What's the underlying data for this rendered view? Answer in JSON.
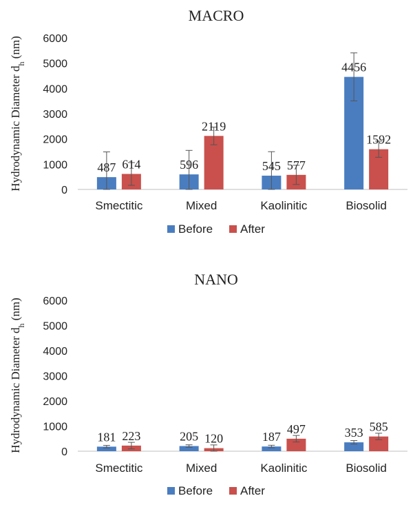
{
  "chart_data": [
    {
      "type": "bar",
      "title": "MACRO",
      "ylabel_main": "Hydrodynamic Diameter d",
      "ylabel_sub": "h",
      "ylabel_unit": " (nm)",
      "ylim": [
        0,
        6000
      ],
      "yticks": [
        "0",
        "1000",
        "2000",
        "3000",
        "4000",
        "5000",
        "6000"
      ],
      "categories": [
        "Smectitic",
        "Mixed",
        "Kaolinitic",
        "Biosolid"
      ],
      "series": [
        {
          "name": "Before",
          "color": "#4a7dc0",
          "values": [
            487,
            596,
            545,
            4456
          ],
          "labels": [
            "487",
            "596",
            "545",
            "4456"
          ],
          "errors": [
            1000,
            950,
            950,
            950
          ]
        },
        {
          "name": "After",
          "color": "#c9504c",
          "values": [
            614,
            2119,
            577,
            1592
          ],
          "labels": [
            "614",
            "2119",
            "577",
            "1592"
          ],
          "errors": [
            450,
            350,
            380,
            320
          ]
        }
      ],
      "legend_position": "bottom"
    },
    {
      "type": "bar",
      "title": "NANO",
      "ylabel_main": "Hydrodynamic Diameter d",
      "ylabel_sub": "h",
      "ylabel_unit": " (nm)",
      "ylim": [
        0,
        6000
      ],
      "yticks": [
        "0",
        "1000",
        "2000",
        "3000",
        "4000",
        "5000",
        "6000"
      ],
      "categories": [
        "Smectitic",
        "Mixed",
        "Kaolinitic",
        "Biosolid"
      ],
      "series": [
        {
          "name": "Before",
          "color": "#4a7dc0",
          "values": [
            181,
            205,
            187,
            353
          ],
          "labels": [
            "181",
            "205",
            "187",
            "353"
          ],
          "errors": [
            50,
            50,
            50,
            70
          ]
        },
        {
          "name": "After",
          "color": "#c9504c",
          "values": [
            223,
            120,
            497,
            585
          ],
          "labels": [
            "223",
            "120",
            "497",
            "585"
          ],
          "errors": [
            130,
            130,
            130,
            130
          ]
        }
      ],
      "legend_position": "bottom"
    }
  ]
}
